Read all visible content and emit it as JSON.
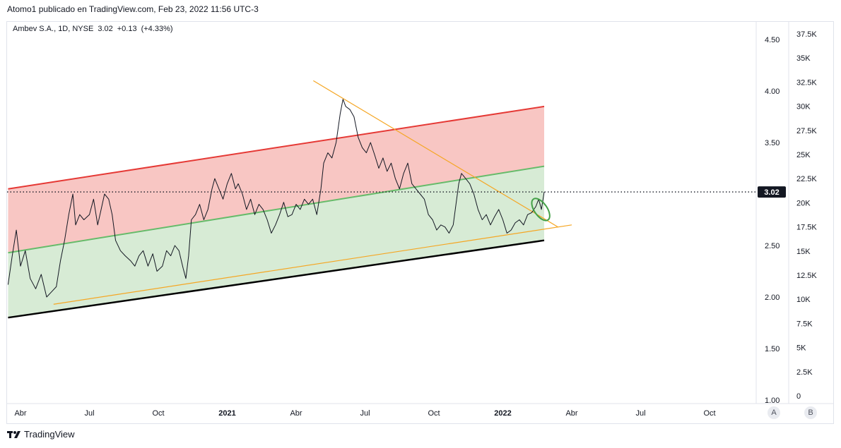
{
  "header": {
    "publish_text": "Atomo1 publicado en TradingView.com, Feb 23, 2022 11:56 UTC-3"
  },
  "legend": {
    "symbol": "Ambev S.A., 1D, NYSE",
    "last": "3.02",
    "change": "+0.13",
    "change_pct": "(+4.33%)"
  },
  "footer": {
    "brand": "TradingView"
  },
  "scale_buttons": {
    "a": "A",
    "b": "B"
  },
  "colors": {
    "price_line": "#131722",
    "upper_band_fill": "#f8c3c0",
    "lower_band_fill": "#d5ead3",
    "upper_line": "#e53935",
    "mid_line": "#66bb6a",
    "lower_line": "#000000",
    "trend_line": "#f5a623",
    "circle": "#43a047"
  },
  "chart_data": {
    "type": "line",
    "symbol": "Ambev S.A.",
    "last_price_label": "3.02",
    "price_axis_ticks": [
      1.0,
      1.5,
      2.0,
      2.5,
      3.0,
      3.5,
      4.0,
      4.5
    ],
    "price_axis_labels": [
      "1.00",
      "1.50",
      "2.00",
      "2.50",
      "3.50",
      "4.00",
      "4.50"
    ],
    "volume_axis_ticks": [
      "0",
      "2.5K",
      "5K",
      "7.5K",
      "10K",
      "12.5K",
      "15K",
      "17.5K",
      "20K",
      "22.5K",
      "25K",
      "27.5K",
      "30K",
      "32.5K",
      "35K",
      "37.5K"
    ],
    "ylim": [
      1.0,
      4.7
    ],
    "time_axis": [
      "Abr",
      "Jul",
      "Oct",
      "2021",
      "Abr",
      "Jul",
      "Oct",
      "2022",
      "Abr",
      "Jul",
      "Oct"
    ],
    "time_axis_bold": [
      false,
      false,
      false,
      true,
      false,
      false,
      false,
      true,
      false,
      false,
      false
    ],
    "time_axis_pos": [
      0.0,
      1.0,
      2.0,
      3.0,
      4.0,
      5.0,
      6.0,
      7.0,
      8.0,
      9.0,
      10.0
    ],
    "price_series": [
      [
        -0.18,
        2.12
      ],
      [
        -0.12,
        2.4
      ],
      [
        -0.06,
        2.65
      ],
      [
        0.0,
        2.3
      ],
      [
        0.07,
        2.45
      ],
      [
        0.14,
        2.18
      ],
      [
        0.22,
        2.08
      ],
      [
        0.3,
        2.22
      ],
      [
        0.38,
        2.0
      ],
      [
        0.45,
        2.05
      ],
      [
        0.52,
        2.1
      ],
      [
        0.58,
        2.35
      ],
      [
        0.64,
        2.55
      ],
      [
        0.7,
        2.8
      ],
      [
        0.76,
        3.0
      ],
      [
        0.8,
        2.7
      ],
      [
        0.86,
        2.8
      ],
      [
        0.92,
        2.75
      ],
      [
        1.0,
        2.8
      ],
      [
        1.06,
        2.95
      ],
      [
        1.12,
        2.7
      ],
      [
        1.17,
        2.85
      ],
      [
        1.22,
        3.0
      ],
      [
        1.28,
        2.95
      ],
      [
        1.33,
        2.8
      ],
      [
        1.38,
        2.55
      ],
      [
        1.45,
        2.45
      ],
      [
        1.52,
        2.4
      ],
      [
        1.6,
        2.35
      ],
      [
        1.66,
        2.3
      ],
      [
        1.72,
        2.4
      ],
      [
        1.78,
        2.45
      ],
      [
        1.85,
        2.3
      ],
      [
        1.92,
        2.42
      ],
      [
        1.98,
        2.25
      ],
      [
        2.06,
        2.3
      ],
      [
        2.12,
        2.45
      ],
      [
        2.18,
        2.4
      ],
      [
        2.24,
        2.5
      ],
      [
        2.3,
        2.45
      ],
      [
        2.36,
        2.28
      ],
      [
        2.4,
        2.18
      ],
      [
        2.44,
        2.4
      ],
      [
        2.48,
        2.75
      ],
      [
        2.54,
        2.8
      ],
      [
        2.6,
        2.9
      ],
      [
        2.66,
        2.75
      ],
      [
        2.72,
        2.85
      ],
      [
        2.78,
        3.05
      ],
      [
        2.82,
        3.15
      ],
      [
        2.88,
        3.05
      ],
      [
        2.94,
        2.95
      ],
      [
        3.0,
        3.1
      ],
      [
        3.06,
        3.2
      ],
      [
        3.12,
        3.05
      ],
      [
        3.16,
        3.1
      ],
      [
        3.22,
        3.0
      ],
      [
        3.28,
        2.85
      ],
      [
        3.34,
        2.95
      ],
      [
        3.4,
        2.8
      ],
      [
        3.46,
        2.9
      ],
      [
        3.52,
        2.85
      ],
      [
        3.58,
        2.75
      ],
      [
        3.64,
        2.62
      ],
      [
        3.7,
        2.7
      ],
      [
        3.76,
        2.8
      ],
      [
        3.82,
        2.92
      ],
      [
        3.88,
        2.78
      ],
      [
        3.94,
        2.8
      ],
      [
        4.0,
        2.9
      ],
      [
        4.06,
        2.85
      ],
      [
        4.12,
        2.95
      ],
      [
        4.18,
        2.9
      ],
      [
        4.24,
        2.95
      ],
      [
        4.3,
        2.8
      ],
      [
        4.36,
        3.05
      ],
      [
        4.4,
        3.3
      ],
      [
        4.46,
        3.4
      ],
      [
        4.52,
        3.35
      ],
      [
        4.58,
        3.5
      ],
      [
        4.64,
        3.78
      ],
      [
        4.68,
        3.92
      ],
      [
        4.72,
        3.85
      ],
      [
        4.78,
        3.82
      ],
      [
        4.84,
        3.75
      ],
      [
        4.9,
        3.55
      ],
      [
        4.96,
        3.45
      ],
      [
        5.02,
        3.4
      ],
      [
        5.08,
        3.5
      ],
      [
        5.14,
        3.38
      ],
      [
        5.2,
        3.25
      ],
      [
        5.26,
        3.35
      ],
      [
        5.32,
        3.22
      ],
      [
        5.38,
        3.3
      ],
      [
        5.44,
        3.15
      ],
      [
        5.5,
        3.05
      ],
      [
        5.56,
        3.2
      ],
      [
        5.62,
        3.3
      ],
      [
        5.68,
        3.1
      ],
      [
        5.74,
        3.05
      ],
      [
        5.8,
        3.0
      ],
      [
        5.86,
        2.95
      ],
      [
        5.92,
        2.8
      ],
      [
        5.98,
        2.75
      ],
      [
        6.04,
        2.65
      ],
      [
        6.1,
        2.7
      ],
      [
        6.16,
        2.68
      ],
      [
        6.22,
        2.62
      ],
      [
        6.28,
        2.7
      ],
      [
        6.32,
        2.9
      ],
      [
        6.36,
        3.1
      ],
      [
        6.4,
        3.2
      ],
      [
        6.46,
        3.15
      ],
      [
        6.52,
        3.1
      ],
      [
        6.58,
        3.0
      ],
      [
        6.64,
        2.85
      ],
      [
        6.7,
        2.75
      ],
      [
        6.76,
        2.8
      ],
      [
        6.82,
        2.7
      ],
      [
        6.88,
        2.78
      ],
      [
        6.94,
        2.85
      ],
      [
        7.0,
        2.75
      ],
      [
        7.06,
        2.62
      ],
      [
        7.12,
        2.65
      ],
      [
        7.18,
        2.72
      ],
      [
        7.24,
        2.75
      ],
      [
        7.3,
        2.7
      ],
      [
        7.36,
        2.8
      ],
      [
        7.42,
        2.82
      ],
      [
        7.48,
        2.88
      ],
      [
        7.52,
        2.95
      ],
      [
        7.56,
        2.85
      ],
      [
        7.6,
        3.02
      ]
    ],
    "upper_channel": [
      [
        -0.18,
        3.05
      ],
      [
        7.6,
        3.85
      ]
    ],
    "middle_channel": [
      [
        -0.18,
        2.43
      ],
      [
        7.6,
        3.27
      ]
    ],
    "lower_channel": [
      [
        -0.18,
        1.8
      ],
      [
        7.6,
        2.55
      ]
    ],
    "upper_trendline": [
      [
        4.25,
        4.1
      ],
      [
        7.8,
        2.68
      ]
    ],
    "lower_trendline": [
      [
        0.48,
        1.93
      ],
      [
        8.0,
        2.7
      ]
    ],
    "last_price": 3.02
  }
}
